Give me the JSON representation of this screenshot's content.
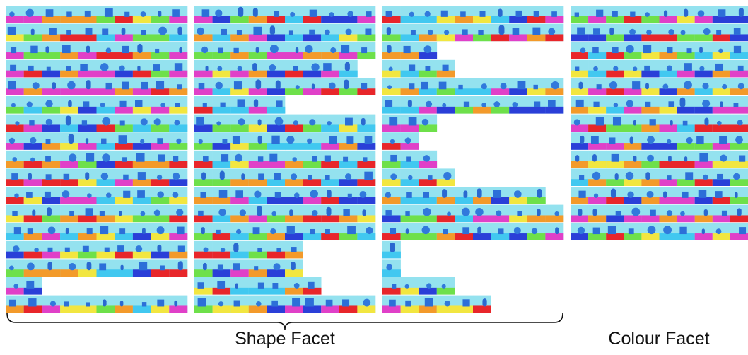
{
  "labels": {
    "shape": "Shape Facet",
    "colour": "Colour Facet"
  }
}
